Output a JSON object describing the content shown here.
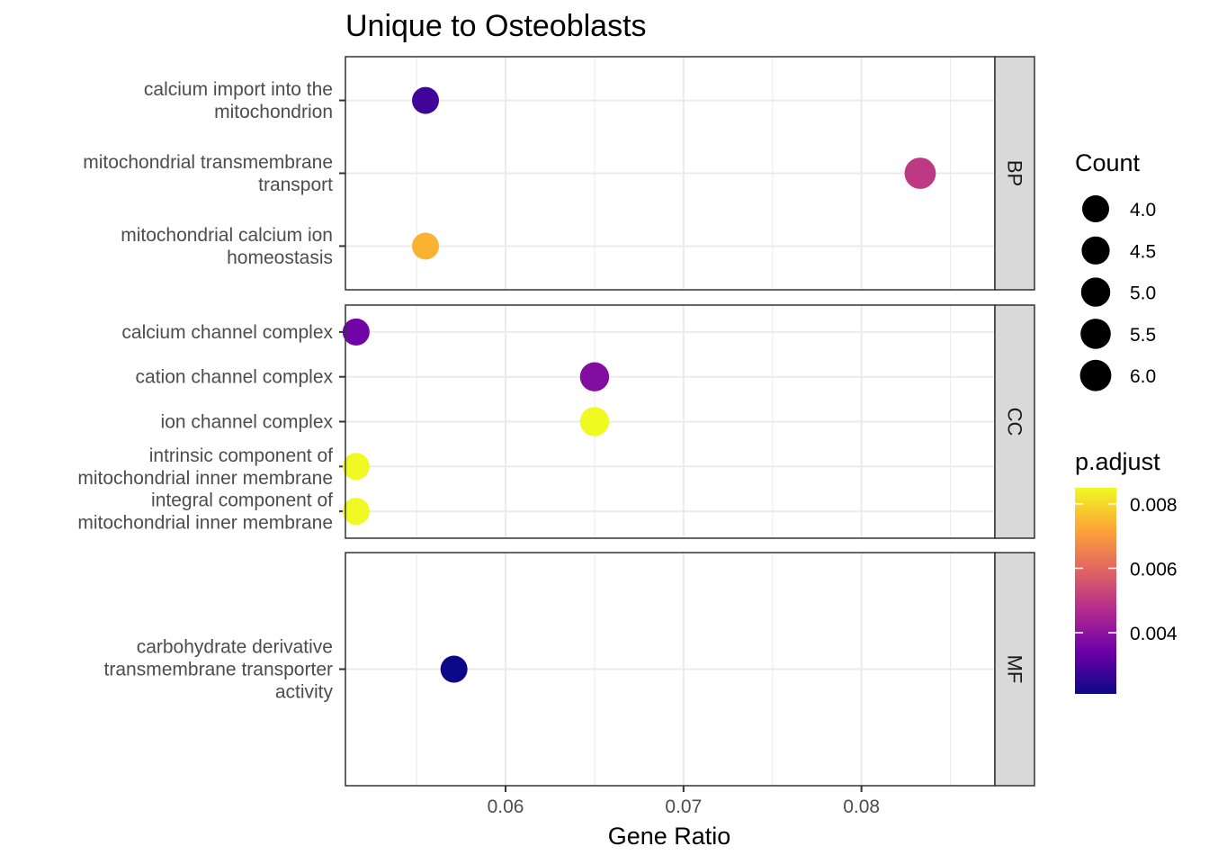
{
  "chart_data": {
    "type": "scatter",
    "title": "Unique to Osteoblasts",
    "xlabel": "Gene Ratio",
    "ylabel": "",
    "xlim": [
      0.051,
      0.0875
    ],
    "xticks": [
      0.06,
      0.07,
      0.08
    ],
    "xtick_labels": [
      "0.06",
      "0.07",
      "0.08"
    ],
    "grid": true,
    "facets": [
      {
        "name": "BP",
        "points": [
          {
            "label": [
              "calcium import into the",
              "mitochondrion"
            ],
            "x": 0.0555,
            "count": 4,
            "p_adjust": 0.0028
          },
          {
            "label": [
              "mitochondrial transmembrane",
              "transport"
            ],
            "x": 0.0833,
            "count": 6,
            "p_adjust": 0.005
          },
          {
            "label": [
              "mitochondrial calcium ion",
              "homeostasis"
            ],
            "x": 0.0555,
            "count": 4,
            "p_adjust": 0.0074
          }
        ]
      },
      {
        "name": "CC",
        "points": [
          {
            "label": [
              "calcium channel complex"
            ],
            "x": 0.0516,
            "count": 4,
            "p_adjust": 0.0035
          },
          {
            "label": [
              "cation channel complex"
            ],
            "x": 0.065,
            "count": 5,
            "p_adjust": 0.0038
          },
          {
            "label": [
              "ion channel complex"
            ],
            "x": 0.065,
            "count": 5,
            "p_adjust": 0.0085
          },
          {
            "label": [
              "intrinsic component of",
              "mitochondrial inner membrane"
            ],
            "x": 0.0516,
            "count": 4,
            "p_adjust": 0.0085
          },
          {
            "label": [
              "integral component of",
              "mitochondrial inner membrane"
            ],
            "x": 0.0516,
            "count": 4,
            "p_adjust": 0.0085
          }
        ]
      },
      {
        "name": "MF",
        "points": [
          {
            "label": [
              "carbohydrate derivative",
              "transmembrane transporter",
              "activity"
            ],
            "x": 0.0571,
            "count": 4,
            "p_adjust": 0.0021
          }
        ]
      }
    ],
    "legend_size": {
      "title": "Count",
      "values": [
        4.0,
        4.5,
        5.0,
        5.5,
        6.0
      ],
      "labels": [
        "4.0",
        "4.5",
        "5.0",
        "5.5",
        "6.0"
      ]
    },
    "legend_color": {
      "title": "p.adjust",
      "range": [
        0.0021,
        0.0085
      ],
      "ticks": [
        0.004,
        0.006,
        0.008
      ],
      "tick_labels": [
        "0.004",
        "0.006",
        "0.008"
      ],
      "palette": [
        "#0d0887",
        "#6a00a8",
        "#b12a90",
        "#e16462",
        "#fca636",
        "#f0f921"
      ]
    },
    "legend_placement": "right"
  }
}
